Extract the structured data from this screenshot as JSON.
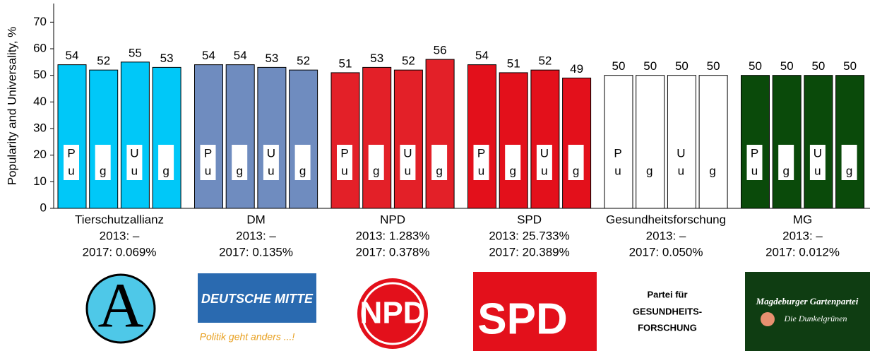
{
  "chart_data": {
    "type": "bar",
    "ylabel": "Popularity and Universality, %",
    "ylim": [
      0,
      77
    ],
    "yticks": [
      0,
      10,
      20,
      30,
      40,
      50,
      60,
      70
    ],
    "bar_labels": [
      [
        "P",
        "u"
      ],
      [
        "g"
      ],
      [
        "U",
        "u"
      ],
      [
        "g"
      ]
    ],
    "groups": [
      {
        "name": "Tierschutzallianz",
        "color": "#00c8f8",
        "values": [
          54,
          52,
          55,
          53
        ],
        "line2013": "2013: –",
        "line2017": "2017: 0.069%",
        "logo": [
          "A"
        ]
      },
      {
        "name": "DM",
        "color": "#6f8cbf",
        "values": [
          54,
          54,
          53,
          52
        ],
        "line2013": "2013: –",
        "line2017": "2017: 0.135%",
        "logo": [
          "DEUTSCHE MITTE",
          "Politik geht anders ...!"
        ]
      },
      {
        "name": "NPD",
        "color": "#e32028",
        "values": [
          51,
          53,
          52,
          56
        ],
        "line2013": "2013: 1.283%",
        "line2017": "2017: 0.378%",
        "logo": [
          "NPD"
        ]
      },
      {
        "name": "SPD",
        "color": "#e3101b",
        "values": [
          54,
          51,
          52,
          49
        ],
        "line2013": "2013: 25.733%",
        "line2017": "2017: 20.389%",
        "logo": [
          "SPD"
        ]
      },
      {
        "name": "Gesundheitsforschung",
        "color": "#ffffff",
        "values": [
          50,
          50,
          50,
          50
        ],
        "line2013": "2013: –",
        "line2017": "2017: 0.050%",
        "logo": [
          "Partei für",
          "GESUNDHEITS-",
          "FORSCHUNG"
        ]
      },
      {
        "name": "MG",
        "color": "#0a4a0a",
        "values": [
          50,
          50,
          50,
          50
        ],
        "line2013": "2013: –",
        "line2017": "2017: 0.012%",
        "logo": [
          "Magdeburger Gartenpartei",
          "Die Dunkelgrünen"
        ]
      }
    ]
  }
}
